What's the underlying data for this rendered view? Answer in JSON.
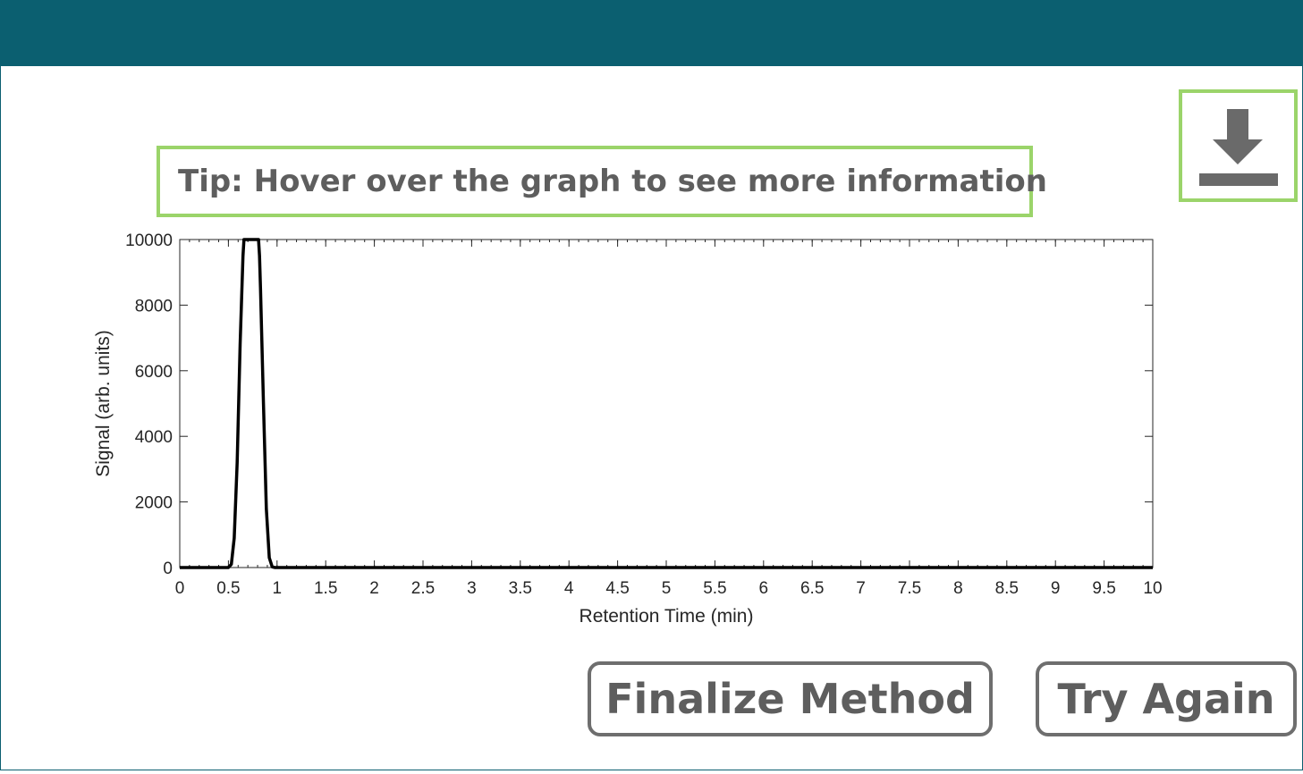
{
  "tip": {
    "text": "Tip: Hover over the graph to see more information"
  },
  "download": {
    "icon": "download-icon"
  },
  "buttons": {
    "finalize": "Finalize Method",
    "try_again": "Try Again"
  },
  "colors": {
    "header": "#0b5f70",
    "accent_border": "#9bd46a",
    "text_gray": "#5e5e5e",
    "line": "#000000"
  },
  "chart_data": {
    "type": "line",
    "xlabel": "Retention Time (min)",
    "ylabel": "Signal (arb. units)",
    "xlim": [
      0,
      10
    ],
    "ylim": [
      0,
      10000
    ],
    "xticks": [
      "0",
      "0.5",
      "1",
      "1.5",
      "2",
      "2.5",
      "3",
      "3.5",
      "4",
      "4.5",
      "5",
      "5.5",
      "6",
      "6.5",
      "7",
      "7.5",
      "8",
      "8.5",
      "9",
      "9.5",
      "10"
    ],
    "yticks": [
      "0",
      "2000",
      "4000",
      "6000",
      "8000",
      "10000"
    ],
    "grid": false,
    "series": [
      {
        "x": [
          0,
          0.5,
          0.53,
          0.56,
          0.59,
          0.62,
          0.65,
          0.66,
          0.67,
          0.68,
          0.72,
          0.76,
          0.8,
          0.81,
          0.82,
          0.83,
          0.86,
          0.89,
          0.92,
          0.95,
          0.98,
          1.0,
          10
        ],
        "y": [
          0,
          0,
          100,
          900,
          3200,
          6800,
          9500,
          10000,
          10000,
          10000,
          10000,
          10000,
          10000,
          10000,
          9500,
          8500,
          5000,
          1800,
          300,
          20,
          0,
          0,
          0
        ]
      }
    ]
  }
}
